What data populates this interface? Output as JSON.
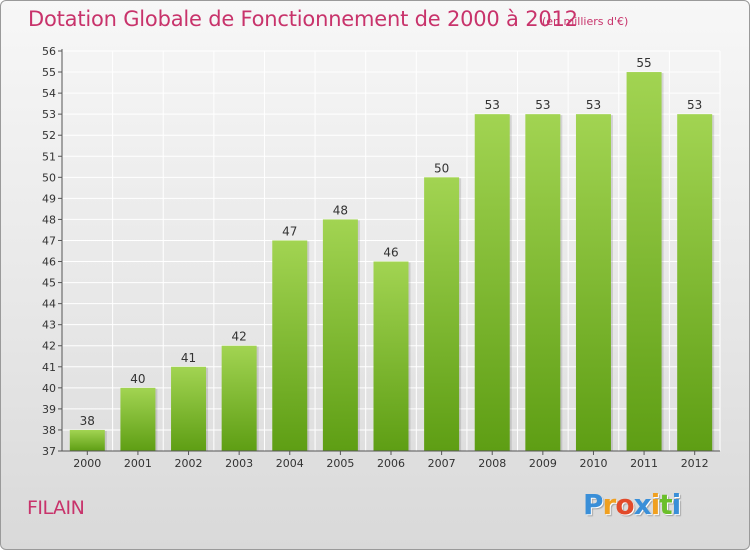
{
  "header": {
    "title": "Dotation Globale de Fonctionnement de 2000 à 2012",
    "unit": "(en milliers d'€)"
  },
  "footer": {
    "commune": "FILAIN",
    "logo_letters": [
      "P",
      "r",
      "o",
      "x",
      "i",
      "t",
      "i"
    ],
    "logo_colors": [
      "#3a8fd8",
      "#f0a020",
      "#e24a2a",
      "#3a8fd8",
      "#f0a020",
      "#6bbf2a",
      "#3a8fd8"
    ]
  },
  "colors": {
    "title": "#c8336b",
    "bar_top": "#a2d452",
    "bar_bottom": "#5e9e14",
    "axis": "#555555",
    "grid": "#ffffff"
  },
  "chart_data": {
    "type": "bar",
    "categories": [
      "2000",
      "2001",
      "2002",
      "2003",
      "2004",
      "2005",
      "2006",
      "2007",
      "2008",
      "2009",
      "2010",
      "2011",
      "2012"
    ],
    "values": [
      38,
      40,
      41,
      42,
      47,
      48,
      46,
      50,
      53,
      53,
      53,
      55,
      53
    ],
    "title": "Dotation Globale de Fonctionnement de 2000 à 2012",
    "ylabel": "",
    "xlabel": "",
    "ylim": [
      37,
      56
    ],
    "yticks": [
      37,
      38,
      39,
      40,
      41,
      42,
      43,
      44,
      45,
      46,
      47,
      48,
      49,
      50,
      51,
      52,
      53,
      54,
      55,
      56
    ],
    "grid": true
  }
}
